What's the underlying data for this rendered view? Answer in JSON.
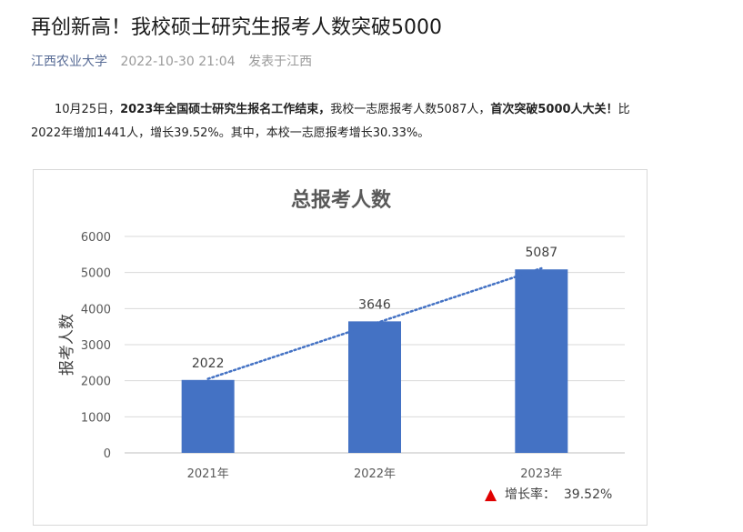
{
  "article": {
    "title": "再创新高！我校硕士研究生报考人数突破5000",
    "account": "江西农业大学",
    "datetime": "2022-10-30 21:04",
    "location": "发表于江西"
  },
  "paragraph": {
    "p1": "10月25日，",
    "b1": "2023年全国硕士研究生报名工作结束，",
    "p2": "我校一志愿报考人数5087人，",
    "b2": "首次突破5000人大关！",
    "p3": "比2022年增加1441人，增长39.52%。其中，本校一志愿报考增长30.33%。"
  },
  "chart_data": {
    "type": "bar",
    "title": "总报考人数",
    "ylabel": "报考人数",
    "xlabel": "",
    "categories": [
      "2021年",
      "2022年",
      "2023年"
    ],
    "values": [
      2022,
      3646,
      5087
    ],
    "data_labels": [
      "2022",
      "3646",
      "5087"
    ],
    "ylim": [
      0,
      6000
    ],
    "yticks": [
      0,
      1000,
      2000,
      3000,
      4000,
      5000,
      6000
    ],
    "grid": true,
    "trendline": "dotted linear",
    "bar_color": "#4472c4",
    "trend_color": "#4472c4",
    "annotation": {
      "marker": "▲",
      "marker_color": "#e00000",
      "text": "增长率：  39.52%"
    }
  }
}
